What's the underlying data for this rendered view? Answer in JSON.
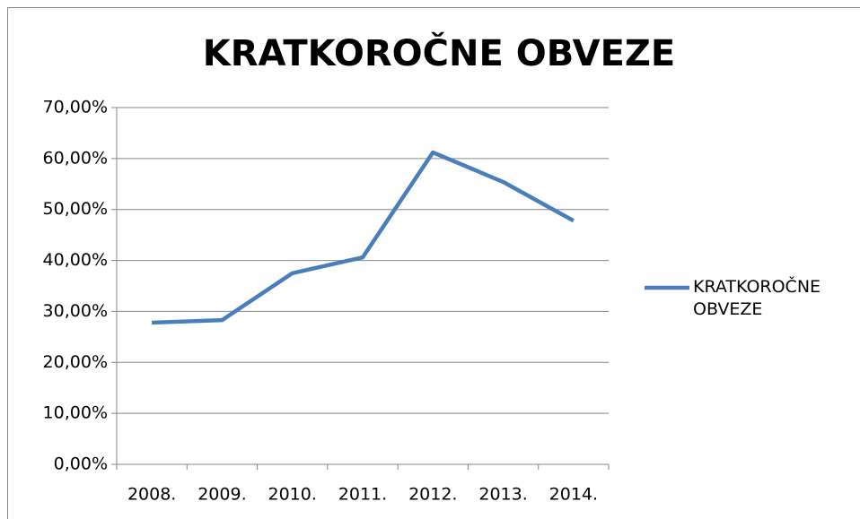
{
  "chart_data": {
    "type": "line",
    "title": "KRATKOROČNE OBVEZE",
    "categories": [
      "2008.",
      "2009.",
      "2010.",
      "2011.",
      "2012.",
      "2013.",
      "2014."
    ],
    "series": [
      {
        "name": "KRATKOROČNE OBVEZE",
        "color": "#4a7ebb",
        "values": [
          27.8,
          28.3,
          37.5,
          40.6,
          61.2,
          55.4,
          47.8
        ]
      }
    ],
    "ylim": [
      0,
      70
    ],
    "yticks": [
      {
        "value": 0,
        "label": "0,00%"
      },
      {
        "value": 10,
        "label": "10,00%"
      },
      {
        "value": 20,
        "label": "20,00%"
      },
      {
        "value": 30,
        "label": "30,00%"
      },
      {
        "value": 40,
        "label": "40,00%"
      },
      {
        "value": 50,
        "label": "50,00%"
      },
      {
        "value": 60,
        "label": "60,00%"
      },
      {
        "value": 70,
        "label": "70,00%"
      }
    ],
    "grid": true,
    "legend": "right"
  }
}
